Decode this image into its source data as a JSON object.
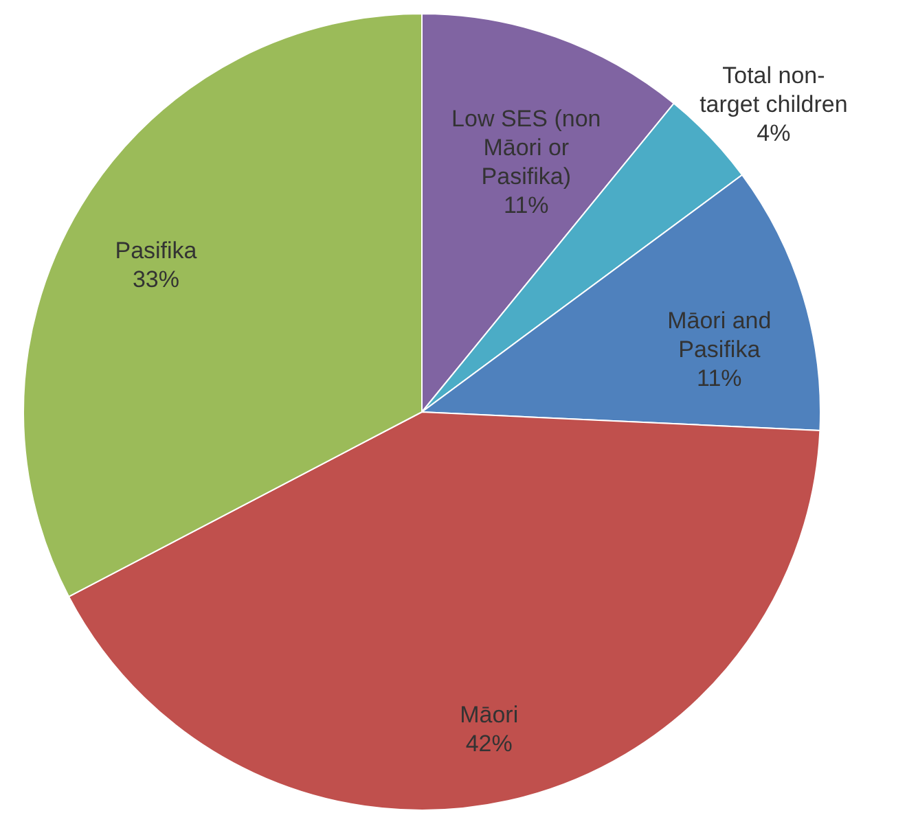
{
  "chart_data": {
    "type": "pie",
    "categories": [
      "Low SES (non Māori or Pasifika)",
      "Total non-target children",
      "Māori and Pasifika",
      "Māori",
      "Pasifika"
    ],
    "values": [
      11,
      4,
      11,
      42,
      33
    ],
    "value_labels": [
      "11%",
      "4%",
      "11%",
      "42%",
      "33%"
    ],
    "colors": [
      "#8064a2",
      "#4bacc6",
      "#4f81bd",
      "#c0504d",
      "#9bbb59"
    ]
  }
}
